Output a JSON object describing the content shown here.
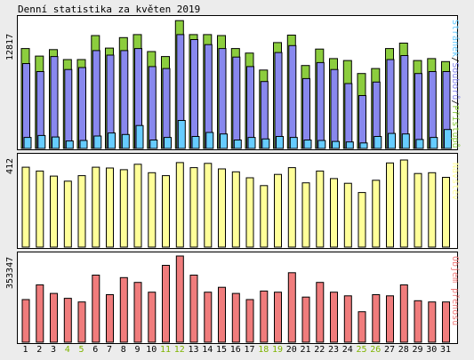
{
  "title": "Denní statistika za květen 2019",
  "colors": {
    "pages": "#8ccd3e",
    "files": "#8888ee",
    "hits": "#66ccff",
    "visits": "#ffff99",
    "traffic": "#f07c7c",
    "weekend": "#7fb400",
    "text": "#000000"
  },
  "chart_data": [
    {
      "type": "bar",
      "title": "Denní statistika za květen 2019",
      "ymax_label": "12817",
      "ylim": [
        0,
        12817
      ],
      "legend": {
        "hits": "Stránek",
        "separator1": "/",
        "files": "Souborů",
        "separator2": "/",
        "pages": "Přístupů"
      },
      "categories": [
        "1",
        "2",
        "3",
        "4",
        "5",
        "6",
        "7",
        "8",
        "9",
        "10",
        "11",
        "12",
        "13",
        "14",
        "15",
        "16",
        "17",
        "18",
        "19",
        "20",
        "21",
        "22",
        "23",
        "24",
        "25",
        "26",
        "27",
        "28",
        "29",
        "30",
        "31"
      ],
      "weekend_days": [
        "4",
        "5",
        "11",
        "12",
        "18",
        "19",
        "25",
        "26"
      ],
      "series": [
        {
          "name": "Přístupů",
          "values": [
            10000,
            9250,
            9900,
            8900,
            8900,
            11300,
            10050,
            11100,
            11400,
            9700,
            9200,
            12800,
            11400,
            11400,
            11300,
            10000,
            9550,
            7850,
            10600,
            11350,
            8300,
            9950,
            9000,
            8800,
            7500,
            8000,
            10000,
            10550,
            8800,
            9000,
            8700
          ]
        },
        {
          "name": "Souborů",
          "values": [
            8500,
            7700,
            9200,
            7900,
            8100,
            9800,
            9350,
            9800,
            10000,
            8200,
            8000,
            11400,
            10900,
            10400,
            10000,
            9150,
            8200,
            6700,
            9600,
            10300,
            7000,
            8600,
            7900,
            6500,
            5300,
            6650,
            8900,
            9300,
            7500,
            7700,
            7700
          ]
        },
        {
          "name": "Stránek",
          "values": [
            1100,
            1300,
            1150,
            750,
            800,
            1250,
            1550,
            1400,
            2300,
            850,
            1100,
            2800,
            1200,
            1600,
            1450,
            850,
            1100,
            950,
            1200,
            1100,
            850,
            800,
            700,
            650,
            550,
            1200,
            1500,
            1450,
            900,
            1100,
            1900
          ]
        }
      ]
    },
    {
      "type": "bar",
      "ymax_label": "412",
      "ylim": [
        0,
        412
      ],
      "legend": "Návštěv",
      "categories": [
        "1",
        "2",
        "3",
        "4",
        "5",
        "6",
        "7",
        "8",
        "9",
        "10",
        "11",
        "12",
        "13",
        "14",
        "15",
        "16",
        "17",
        "18",
        "19",
        "20",
        "21",
        "22",
        "23",
        "24",
        "25",
        "26",
        "27",
        "28",
        "29",
        "30",
        "31"
      ],
      "series": [
        {
          "name": "Návštěv",
          "values": [
            378,
            360,
            336,
            312,
            338,
            378,
            374,
            366,
            392,
            352,
            338,
            400,
            376,
            396,
            370,
            356,
            328,
            291,
            344,
            376,
            304,
            360,
            324,
            302,
            258,
            316,
            398,
            412,
            348,
            352,
            330
          ]
        }
      ]
    },
    {
      "type": "bar",
      "ymax_label": "353347",
      "ylim": [
        0,
        353347
      ],
      "legend": "Objem přenosu",
      "categories": [
        "1",
        "2",
        "3",
        "4",
        "5",
        "6",
        "7",
        "8",
        "9",
        "10",
        "11",
        "12",
        "13",
        "14",
        "15",
        "16",
        "17",
        "18",
        "19",
        "20",
        "21",
        "22",
        "23",
        "24",
        "25",
        "26",
        "27",
        "28",
        "29",
        "30",
        "31"
      ],
      "series": [
        {
          "name": "Objem přenosu",
          "values": [
            175000,
            235000,
            200000,
            180000,
            165000,
            275000,
            195000,
            265000,
            245000,
            205000,
            315000,
            353347,
            275000,
            205000,
            225000,
            200000,
            175000,
            210000,
            205000,
            285000,
            185000,
            245000,
            205000,
            190000,
            125000,
            195000,
            190000,
            235000,
            170000,
            165000,
            165000
          ]
        }
      ]
    }
  ]
}
